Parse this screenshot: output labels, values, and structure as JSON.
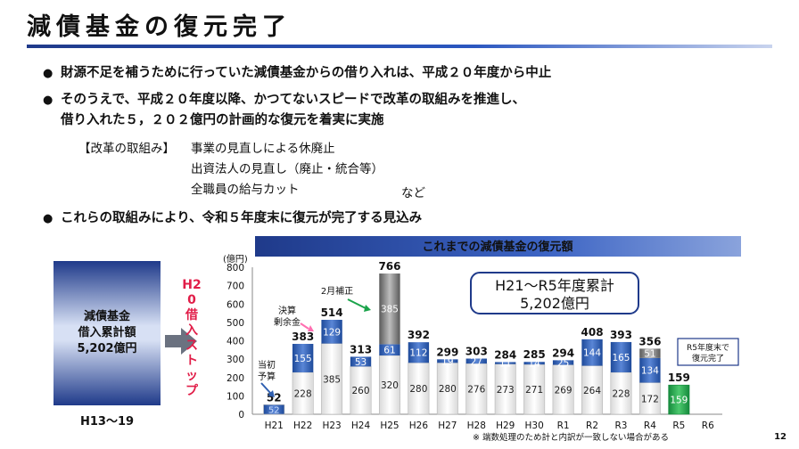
{
  "title": "減債基金の復元完了",
  "bullets": [
    {
      "lines": [
        "財源不足を補うために行っていた減債基金からの借り入れは、平成２０年度から中止"
      ]
    },
    {
      "lines": [
        "そのうえで、平成２０年度以降、かつてないスピードで改革の取組みを推進し、",
        "借り入れた５，２０２億円の計画的な復元を着実に実施"
      ]
    },
    {
      "lines": [
        "これらの取組みにより、令和５年度末に復元が完了する見込み"
      ]
    }
  ],
  "reform": {
    "head": "【改革の取組み】",
    "items": [
      "事業の見直しによる休廃止",
      "出資法人の見直し（廃止・統合等）",
      "全職員の給与カット"
    ],
    "etc": "など"
  },
  "left_box": {
    "lines": [
      "減債基金",
      "借入累計額",
      "5,202億円"
    ],
    "caption": "H13～19"
  },
  "stop_text": "H20借入ストップ",
  "page_number": "12",
  "chart_data": {
    "type": "bar",
    "title": "これまでの減債基金の復元額",
    "ylabel": "(億円)",
    "ylim": [
      0,
      800
    ],
    "yticks": [
      0,
      100,
      200,
      300,
      400,
      500,
      600,
      700,
      800
    ],
    "categories": [
      "H21",
      "H22",
      "H23",
      "H24",
      "H25",
      "H26",
      "H27",
      "H28",
      "H29",
      "H30",
      "R1",
      "R2",
      "R3",
      "R4",
      "R5",
      "R6"
    ],
    "totals": [
      52,
      383,
      514,
      313,
      766,
      392,
      299,
      303,
      284,
      285,
      294,
      408,
      393,
      356,
      159,
      null
    ],
    "series": [
      {
        "name": "当初予算",
        "values": [
          52,
          228,
          385,
          260,
          320,
          280,
          280,
          276,
          273,
          271,
          269,
          264,
          228,
          172,
          159,
          null
        ]
      },
      {
        "name": "決算剰余金",
        "values": [
          null,
          155,
          129,
          53,
          61,
          112,
          19,
          27,
          11,
          14,
          25,
          144,
          165,
          134,
          null,
          null
        ]
      },
      {
        "name": "2月補正",
        "values": [
          null,
          null,
          null,
          null,
          385,
          null,
          null,
          null,
          null,
          null,
          null,
          null,
          null,
          51,
          null,
          null
        ]
      }
    ],
    "annotations": {
      "initial_budget": "当初予算",
      "surplus": "決算剰余金",
      "feb_supplement": "2月補正",
      "cumulative": [
        "H21～R5年度累計",
        "5,202億円"
      ],
      "completion": [
        "R5年度末で",
        "復元完了"
      ],
      "footnote": "※ 端数処理のため計と内訳が一致しない場合がある"
    },
    "colors": {
      "base": "#ffffff",
      "surplus": "#2f5fb0",
      "feb": "#7f7f7f",
      "final": "#1aa34a",
      "header": "#1f3a8a"
    }
  }
}
